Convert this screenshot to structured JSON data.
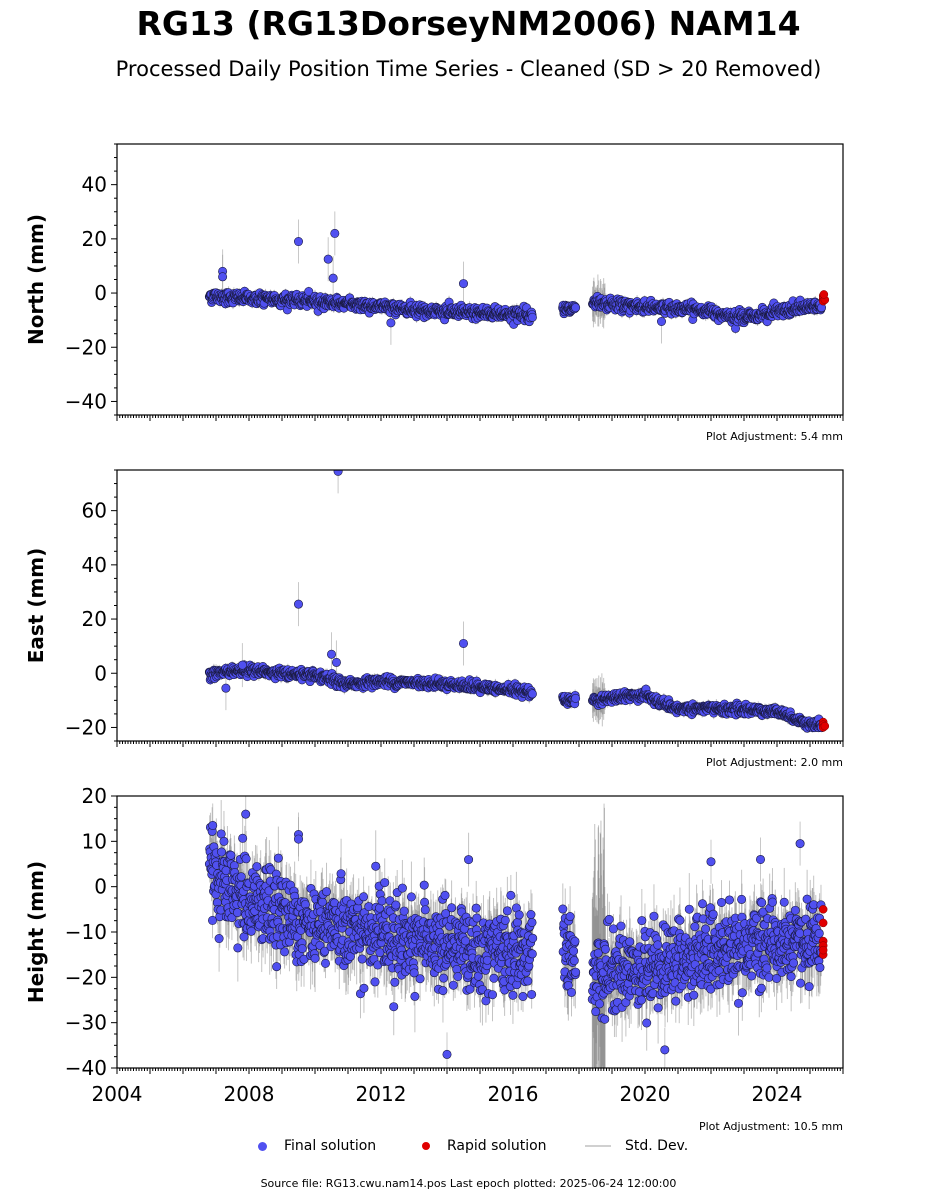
{
  "title": "RG13 (RG13DorseyNM2006) NAM14",
  "subtitle": "Processed Daily Position Time Series - Cleaned (SD > 20 Removed)",
  "footer": "Source file: RG13.cwu.nam14.pos  Last epoch plotted: 2025-06-24 12:00:00",
  "legend": {
    "final": "Final solution",
    "rapid": "Rapid solution",
    "std": "Std. Dev."
  },
  "colors": {
    "final": "#5050f0",
    "final_edge": "#1a1a40",
    "rapid": "#e00000",
    "std": "#808080"
  },
  "chart_data": [
    {
      "type": "scatter",
      "ylabel": "North (mm)",
      "ylim": [
        -45,
        55
      ],
      "yticks": [
        -40,
        -20,
        0,
        20,
        40
      ],
      "xlim": [
        2004,
        2026
      ],
      "adjustment": "Plot Adjustment: 5.4 mm",
      "trend": [
        [
          2006.8,
          -1
        ],
        [
          2008,
          -2
        ],
        [
          2010,
          -3
        ],
        [
          2012,
          -5
        ],
        [
          2014,
          -7
        ],
        [
          2016.5,
          -8
        ],
        [
          2017.5,
          -6.5
        ],
        [
          2018.5,
          -4
        ],
        [
          2020,
          -5
        ],
        [
          2021.5,
          -6
        ],
        [
          2023,
          -9
        ],
        [
          2025,
          -5
        ]
      ],
      "noise": 1.3,
      "outliers": [
        [
          2007.2,
          8
        ],
        [
          2007.2,
          6
        ],
        [
          2009.5,
          19
        ],
        [
          2010.4,
          12.5
        ],
        [
          2010.6,
          22
        ],
        [
          2010.55,
          5.5
        ],
        [
          2014.5,
          3.5
        ],
        [
          2020.5,
          -10.5
        ],
        [
          2012.3,
          -11
        ]
      ],
      "rapid": [
        [
          2025.4,
          -1
        ],
        [
          2025.4,
          -2
        ],
        [
          2025.4,
          -3
        ],
        [
          2025.45,
          -2.5
        ],
        [
          2025.42,
          -0.5
        ]
      ]
    },
    {
      "type": "scatter",
      "ylabel": "East (mm)",
      "ylim": [
        -25,
        75
      ],
      "yticks": [
        -20,
        0,
        20,
        40,
        60
      ],
      "xlim": [
        2004,
        2026
      ],
      "adjustment": "Plot Adjustment: 2.0 mm",
      "trend": [
        [
          2006.8,
          0
        ],
        [
          2008,
          1
        ],
        [
          2010,
          -1
        ],
        [
          2011,
          -4
        ],
        [
          2012,
          -3
        ],
        [
          2014,
          -4
        ],
        [
          2016.5,
          -7
        ],
        [
          2017.7,
          -10
        ],
        [
          2018.5,
          -10
        ],
        [
          2020,
          -8
        ],
        [
          2020.8,
          -13
        ],
        [
          2022,
          -13
        ],
        [
          2024,
          -14
        ],
        [
          2025,
          -19
        ]
      ],
      "noise": 1.0,
      "outliers": [
        [
          2009.5,
          25.5
        ],
        [
          2010.5,
          7
        ],
        [
          2010.7,
          74.5
        ],
        [
          2010.65,
          4
        ],
        [
          2014.5,
          11
        ],
        [
          2007.3,
          -5.5
        ],
        [
          2007.8,
          3
        ]
      ],
      "rapid": [
        [
          2025.4,
          -18
        ],
        [
          2025.4,
          -19
        ],
        [
          2025.4,
          -20
        ],
        [
          2025.45,
          -19.5
        ]
      ]
    },
    {
      "type": "scatter",
      "ylabel": "Height (mm)",
      "ylim": [
        -40,
        20
      ],
      "yticks": [
        -40,
        -30,
        -20,
        -10,
        0,
        10,
        20
      ],
      "xlim": [
        2004,
        2026
      ],
      "xticks": [
        2004,
        2008,
        2012,
        2016,
        2020,
        2024
      ],
      "adjustment": "Plot Adjustment: 10.5 mm",
      "trend": [
        [
          2006.8,
          2
        ],
        [
          2008,
          -3
        ],
        [
          2010,
          -8
        ],
        [
          2012,
          -11
        ],
        [
          2014,
          -13
        ],
        [
          2016.5,
          -15
        ],
        [
          2017.5,
          -15
        ],
        [
          2018.5,
          -19
        ],
        [
          2020,
          -18
        ],
        [
          2022,
          -14
        ],
        [
          2024,
          -13
        ],
        [
          2025,
          -13
        ]
      ],
      "noise": 5.5,
      "outliers": [
        [
          2006.9,
          13.5
        ],
        [
          2007.9,
          16
        ],
        [
          2009.5,
          11.5
        ],
        [
          2009.5,
          10.5
        ],
        [
          2022,
          5.5
        ],
        [
          2023.5,
          6
        ],
        [
          2024.7,
          9.5
        ],
        [
          2020.6,
          -36
        ],
        [
          2014,
          -37
        ]
      ],
      "rapid": [
        [
          2025.4,
          -5
        ],
        [
          2025.4,
          -8
        ],
        [
          2025.4,
          -12
        ],
        [
          2025.4,
          -13
        ],
        [
          2025.4,
          -15
        ],
        [
          2025.4,
          -14
        ]
      ]
    }
  ],
  "gaps": [
    [
      2016.6,
      2017.5
    ],
    [
      2017.9,
      2018.4
    ]
  ]
}
